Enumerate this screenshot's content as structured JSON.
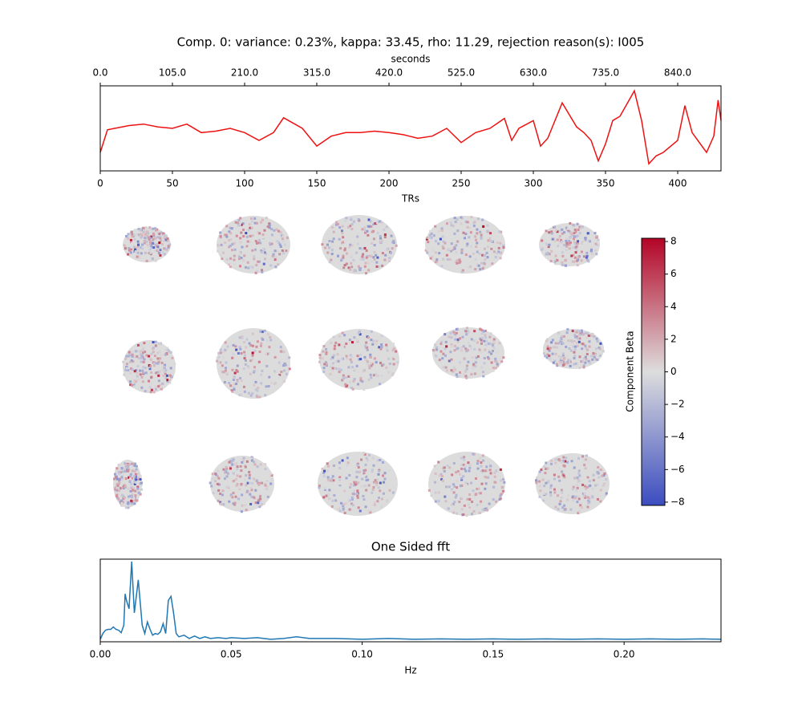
{
  "chart_data": [
    {
      "type": "line",
      "title": "Comp. 0: variance: 0.23%, kappa: 33.45, rho: 11.29, rejection reason(s): I005",
      "xlabel": "TRs",
      "x2label": "seconds",
      "x": [
        0,
        5,
        10,
        20,
        30,
        40,
        50,
        60,
        70,
        80,
        90,
        100,
        110,
        120,
        127,
        140,
        150,
        160,
        170,
        180,
        190,
        200,
        210,
        220,
        230,
        240,
        250,
        260,
        270,
        280,
        285,
        290,
        300,
        305,
        310,
        320,
        330,
        335,
        340,
        345,
        350,
        355,
        360,
        370,
        375,
        380,
        385,
        390,
        400,
        405,
        410,
        420,
        425,
        428,
        430
      ],
      "series": [
        {
          "color": "#ee1111",
          "values": [
            -1.7,
            -0.1,
            0,
            0.2,
            0.3,
            0.1,
            0,
            0.3,
            -0.3,
            -0.2,
            0,
            -0.3,
            -0.85,
            -0.3,
            0.75,
            0,
            -1.25,
            -0.55,
            -0.3,
            -0.3,
            -0.2,
            -0.3,
            -0.45,
            -0.7,
            -0.55,
            0,
            -1,
            -0.3,
            0,
            0.7,
            -0.85,
            0,
            0.55,
            -1.25,
            -0.7,
            1.8,
            0.1,
            -0.3,
            -0.85,
            -2.3,
            -1.1,
            0.55,
            0.85,
            2.65,
            0.55,
            -2.5,
            -1.95,
            -1.7,
            -0.85,
            1.6,
            -0.3,
            -1.7,
            -0.55,
            2,
            0.55
          ]
        }
      ],
      "xlim": [
        0,
        430
      ],
      "ylim": [
        -3,
        3
      ],
      "xticks": [
        0,
        50,
        100,
        150,
        200,
        250,
        300,
        350,
        400
      ],
      "x2lim": [
        0,
        903
      ],
      "x2ticks": [
        {
          "value": 0,
          "label": "0.0"
        },
        {
          "value": 105,
          "label": "105.0"
        },
        {
          "value": 210,
          "label": "210.0"
        },
        {
          "value": 315,
          "label": "315.0"
        },
        {
          "value": 420,
          "label": "420.0"
        },
        {
          "value": 525,
          "label": "525.0"
        },
        {
          "value": 630,
          "label": "630.0"
        },
        {
          "value": 735,
          "label": "735.0"
        },
        {
          "value": 840,
          "label": "840.0"
        }
      ]
    },
    {
      "type": "colorbar",
      "label": "Component Beta",
      "colors": [
        "#3b4cc0",
        "#dddddd",
        "#b40426"
      ],
      "ylim": [
        -8.2,
        8.2
      ],
      "yticks": [
        {
          "value": -8,
          "label": "−8"
        },
        {
          "value": -6,
          "label": "−6"
        },
        {
          "value": -4,
          "label": "−4"
        },
        {
          "value": -2,
          "label": "−2"
        },
        0,
        2,
        4,
        6,
        8
      ]
    },
    {
      "type": "line",
      "title": "One Sided fft",
      "xlabel": "Hz",
      "x": [
        0,
        0.001,
        0.002,
        0.003,
        0.004,
        0.005,
        0.006,
        0.007,
        0.008,
        0.009,
        0.0095,
        0.01,
        0.011,
        0.012,
        0.013,
        0.0145,
        0.016,
        0.017,
        0.018,
        0.019,
        0.02,
        0.021,
        0.022,
        0.023,
        0.024,
        0.025,
        0.026,
        0.027,
        0.028,
        0.029,
        0.03,
        0.032,
        0.034,
        0.036,
        0.038,
        0.04,
        0.042,
        0.045,
        0.048,
        0.05,
        0.055,
        0.06,
        0.065,
        0.07,
        0.075,
        0.08,
        0.09,
        0.1,
        0.11,
        0.12,
        0.13,
        0.14,
        0.15,
        0.16,
        0.17,
        0.18,
        0.19,
        0.2,
        0.21,
        0.22,
        0.23,
        0.237
      ],
      "series": [
        {
          "color": "#1f77b4",
          "values": [
            0.03,
            0.1,
            0.14,
            0.15,
            0.15,
            0.18,
            0.15,
            0.14,
            0.11,
            0.2,
            0.58,
            0.5,
            0.4,
            0.97,
            0.35,
            0.75,
            0.2,
            0.1,
            0.24,
            0.15,
            0.08,
            0.1,
            0.09,
            0.12,
            0.22,
            0.1,
            0.5,
            0.55,
            0.35,
            0.1,
            0.06,
            0.08,
            0.04,
            0.07,
            0.04,
            0.06,
            0.04,
            0.05,
            0.04,
            0.05,
            0.04,
            0.05,
            0.03,
            0.04,
            0.06,
            0.04,
            0.04,
            0.03,
            0.04,
            0.03,
            0.035,
            0.03,
            0.035,
            0.03,
            0.035,
            0.03,
            0.035,
            0.03,
            0.035,
            0.03,
            0.035,
            0.03
          ]
        }
      ],
      "xlim": [
        0,
        0.237
      ],
      "ylim": [
        0,
        1
      ],
      "xticks": [
        {
          "value": 0,
          "label": "0.00"
        },
        {
          "value": 0.05,
          "label": "0.05"
        },
        {
          "value": 0.1,
          "label": "0.10"
        },
        {
          "value": 0.15,
          "label": "0.15"
        },
        {
          "value": 0.2,
          "label": "0.20"
        }
      ]
    }
  ]
}
